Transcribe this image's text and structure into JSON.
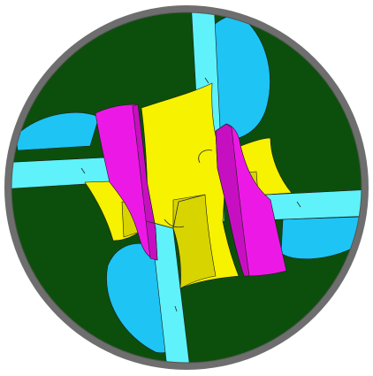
{
  "figure": {
    "kind": "cad-section-render",
    "description_hidden": "",
    "colors": {
      "background": "#ffffff",
      "ring": "#6e6e6e",
      "field": "#0c4f0c",
      "cyan": "#5ff2fa",
      "sky_blue": "#1ec4f4",
      "yellow": "#f6f200",
      "yellow_shade": "#d8d400",
      "magenta": "#ec19e6",
      "magenta_shade": "#c70fc2",
      "edge": "#222222"
    }
  }
}
